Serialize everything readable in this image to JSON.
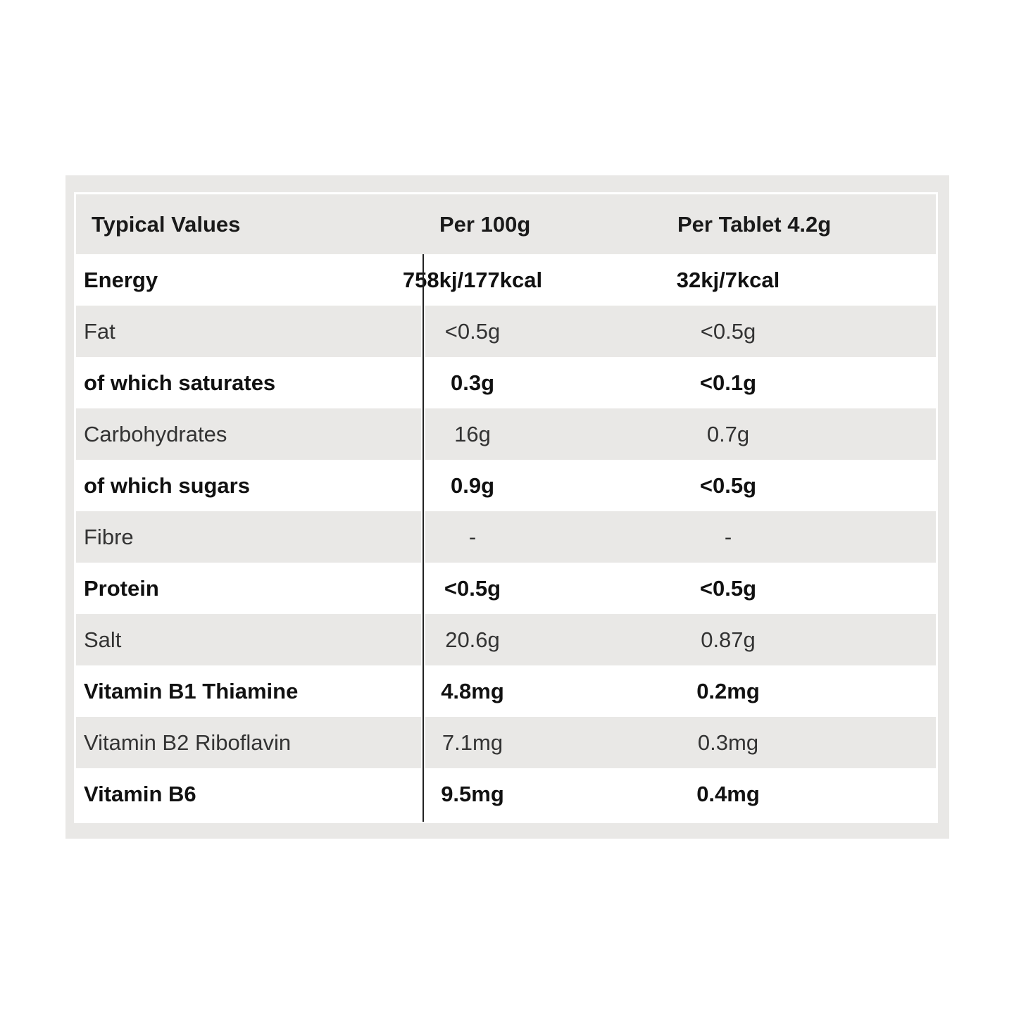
{
  "header": {
    "col0": "Typical Values",
    "col1": "Per 100g",
    "col2": "Per Tablet 4.2g"
  },
  "rows": [
    {
      "name": "Energy",
      "per100g": "758kj/177kcal",
      "perTablet": "32kj/7kcal",
      "bold": true
    },
    {
      "name": "Fat",
      "per100g": "<0.5g",
      "perTablet": "<0.5g",
      "bold": false
    },
    {
      "name": "of which saturates",
      "per100g": "0.3g",
      "perTablet": "<0.1g",
      "bold": true
    },
    {
      "name": "Carbohydrates",
      "per100g": "16g",
      "perTablet": "0.7g",
      "bold": false
    },
    {
      "name": "of which sugars",
      "per100g": "0.9g",
      "perTablet": "<0.5g",
      "bold": true
    },
    {
      "name": "Fibre",
      "per100g": "-",
      "perTablet": "-",
      "bold": false
    },
    {
      "name": "Protein",
      "per100g": "<0.5g",
      "perTablet": "<0.5g",
      "bold": true
    },
    {
      "name": "Salt",
      "per100g": "20.6g",
      "perTablet": "0.87g",
      "bold": false
    },
    {
      "name": "Vitamin B1 Thiamine",
      "per100g": "4.8mg",
      "perTablet": "0.2mg",
      "bold": true
    },
    {
      "name": "Vitamin B2 Riboflavin",
      "per100g": "7.1mg",
      "perTablet": "0.3mg",
      "bold": false
    },
    {
      "name": "Vitamin B6",
      "per100g": "9.5mg",
      "perTablet": "0.4mg",
      "bold": true
    }
  ],
  "colors": {
    "row_shade": "#e9e8e6",
    "text": "#111111"
  }
}
